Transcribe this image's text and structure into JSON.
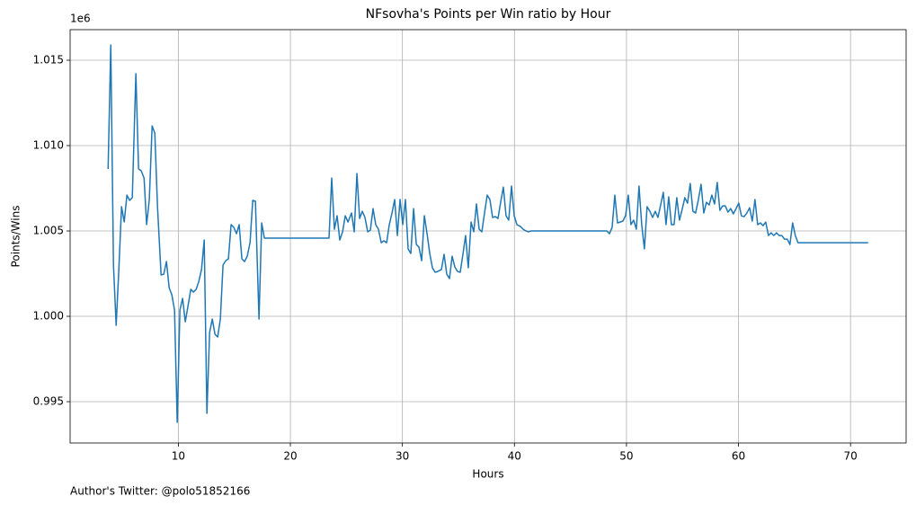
{
  "chart_data": {
    "type": "line",
    "title": "NFsovha's Points per Win ratio by Hour",
    "xlabel": "Hours",
    "ylabel": "Points/Wins",
    "y_offset_label": "1e6",
    "annotation": "Author's Twitter: @polo51852166",
    "grid": true,
    "xlim": [
      0.34,
      74.96
    ],
    "ylim": [
      992580,
      1016790
    ],
    "xticks": [
      10,
      20,
      30,
      40,
      50,
      60,
      70
    ],
    "yticks": [
      {
        "value": 995000,
        "label": "0.995"
      },
      {
        "value": 1000000,
        "label": "1.000"
      },
      {
        "value": 1005000,
        "label": "1.005"
      },
      {
        "value": 1010000,
        "label": "1.010"
      },
      {
        "value": 1015000,
        "label": "1.015"
      }
    ],
    "x": [
      3.73,
      3.97,
      4.21,
      4.45,
      4.69,
      4.93,
      5.17,
      5.41,
      5.65,
      5.89,
      6.21,
      6.45,
      6.69,
      6.94,
      7.17,
      7.41,
      7.66,
      7.9,
      8.14,
      8.46,
      8.7,
      8.94,
      9.18,
      9.42,
      9.66,
      9.9,
      10.14,
      10.38,
      10.62,
      10.87,
      11.11,
      11.35,
      11.59,
      11.83,
      12.07,
      12.31,
      12.55,
      12.79,
      13.03,
      13.27,
      13.51,
      13.75,
      13.99,
      14.23,
      14.47,
      14.71,
      14.95,
      15.19,
      15.43,
      15.67,
      15.91,
      16.15,
      16.4,
      16.64,
      16.88,
      17.2,
      17.44,
      17.68,
      23.45,
      23.69,
      23.93,
      24.17,
      24.41,
      24.66,
      24.9,
      25.14,
      25.46,
      25.7,
      25.94,
      26.18,
      26.42,
      26.66,
      26.9,
      27.14,
      27.38,
      27.62,
      27.86,
      28.11,
      28.35,
      28.59,
      28.83,
      29.07,
      29.31,
      29.55,
      29.79,
      30.03,
      30.27,
      30.51,
      30.75,
      31.0,
      31.24,
      31.48,
      31.72,
      31.96,
      32.2,
      32.44,
      32.68,
      32.92,
      33.16,
      33.48,
      33.72,
      33.96,
      34.2,
      34.44,
      34.68,
      34.92,
      35.16,
      35.4,
      35.64,
      35.88,
      36.13,
      36.37,
      36.61,
      36.85,
      37.09,
      37.33,
      37.57,
      37.81,
      38.05,
      38.29,
      38.53,
      38.77,
      39.01,
      39.25,
      39.49,
      39.74,
      39.98,
      40.22,
      40.54,
      40.78,
      41.02,
      41.26,
      41.5,
      48.24,
      48.48,
      48.72,
      48.96,
      49.2,
      49.44,
      49.68,
      49.92,
      50.16,
      50.4,
      50.64,
      50.88,
      51.12,
      51.36,
      51.6,
      51.84,
      52.09,
      52.33,
      52.57,
      52.81,
      53.05,
      53.29,
      53.53,
      53.77,
      54.01,
      54.25,
      54.49,
      54.73,
      54.97,
      55.21,
      55.45,
      55.69,
      55.93,
      56.17,
      56.42,
      56.66,
      56.9,
      57.14,
      57.38,
      57.62,
      57.86,
      58.1,
      58.34,
      58.58,
      58.82,
      59.06,
      59.3,
      59.54,
      59.78,
      60.02,
      60.26,
      60.5,
      60.75,
      60.99,
      61.23,
      61.47,
      61.71,
      61.95,
      62.19,
      62.43,
      62.67,
      62.91,
      63.15,
      63.39,
      63.63,
      63.87,
      64.11,
      64.35,
      64.59,
      64.83,
      65.07,
      65.31,
      71.57
    ],
    "series": [
      {
        "name": "Points/Wins",
        "color": "#1f77b4",
        "values": [
          1008630,
          1015890,
          1003000,
          999470,
          1002740,
          1006420,
          1005530,
          1007100,
          1006790,
          1006950,
          1014210,
          1008630,
          1008520,
          1008100,
          1005370,
          1006840,
          1011150,
          1010730,
          1006420,
          1002420,
          1002470,
          1003210,
          1001680,
          1001260,
          1000370,
          993790,
          1000370,
          1001050,
          999680,
          1000630,
          1001580,
          1001420,
          1001580,
          1002050,
          1002740,
          1004470,
          994320,
          999050,
          999840,
          998950,
          998790,
          999840,
          1003000,
          1003260,
          1003370,
          1005370,
          1005210,
          1004840,
          1005370,
          1003370,
          1003210,
          1003520,
          1004310,
          1006790,
          1006740,
          999840,
          1005470,
          1004580,
          1004580,
          1008100,
          1005100,
          1005890,
          1004470,
          1004950,
          1005890,
          1005520,
          1006050,
          1004950,
          1008360,
          1005730,
          1006150,
          1005790,
          1004950,
          1005050,
          1006310,
          1005370,
          1005100,
          1004310,
          1004420,
          1004310,
          1005370,
          1006050,
          1006840,
          1004730,
          1006840,
          1005370,
          1006840,
          1003950,
          1003680,
          1006310,
          1004210,
          1004050,
          1003260,
          1005890,
          1004840,
          1003680,
          1002840,
          1002580,
          1002630,
          1002740,
          1003630,
          1002470,
          1002210,
          1003520,
          1002890,
          1002630,
          1002580,
          1003630,
          1004730,
          1002840,
          1005520,
          1004950,
          1006580,
          1005100,
          1004950,
          1006050,
          1007100,
          1006840,
          1005790,
          1005840,
          1005730,
          1006680,
          1007570,
          1005890,
          1005630,
          1007630,
          1005890,
          1005370,
          1005260,
          1005100,
          1005000,
          1004950,
          1005000,
          1005000,
          1004840,
          1005210,
          1007100,
          1005470,
          1005520,
          1005580,
          1005890,
          1007100,
          1005370,
          1005630,
          1005100,
          1007630,
          1005370,
          1003950,
          1006420,
          1006150,
          1005790,
          1006150,
          1005790,
          1006520,
          1007260,
          1005370,
          1007000,
          1005370,
          1005370,
          1006950,
          1005630,
          1006260,
          1006950,
          1006630,
          1007780,
          1006150,
          1006050,
          1006840,
          1007730,
          1006050,
          1006680,
          1006520,
          1007100,
          1006580,
          1007840,
          1006210,
          1006470,
          1006470,
          1006100,
          1006310,
          1006000,
          1006310,
          1006630,
          1005890,
          1005840,
          1006050,
          1006360,
          1005580,
          1006840,
          1005370,
          1005470,
          1005310,
          1005520,
          1004730,
          1004890,
          1004730,
          1004890,
          1004730,
          1004730,
          1004520,
          1004520,
          1004210,
          1005470,
          1004730,
          1004310,
          1004310
        ]
      }
    ]
  }
}
